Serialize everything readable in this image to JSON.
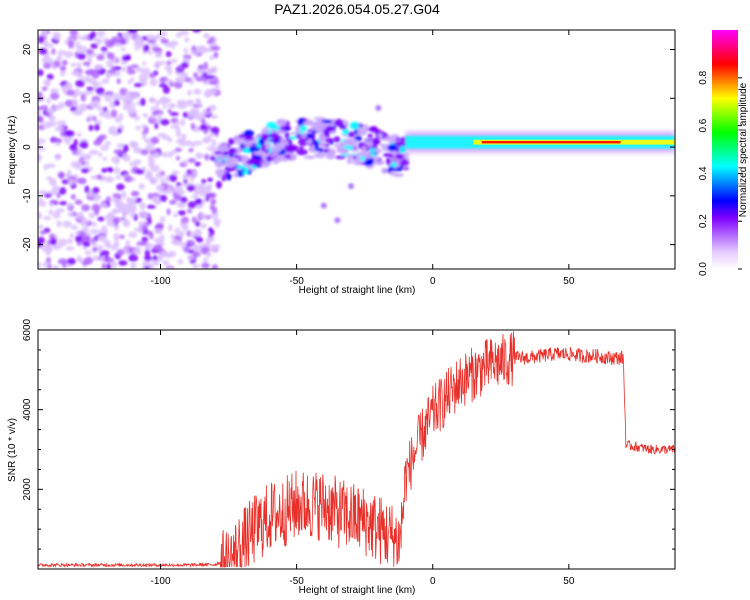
{
  "title": "PAZ1.2026.054.05.27.G04",
  "chart_data": [
    {
      "type": "heatmap",
      "xlabel": "Height of straight line (km)",
      "ylabel": "Frequency (Hz)",
      "xlim": [
        -145,
        89
      ],
      "ylim": [
        -25,
        24
      ],
      "xticks": [
        -100,
        -50,
        0,
        50
      ],
      "yticks": [
        -20,
        -10,
        0,
        10,
        20
      ],
      "colorbar": {
        "label": "Normalized spectral amplitude",
        "range": [
          0,
          1
        ],
        "ticks": [
          "0.0",
          "0.2",
          "0.4",
          "0.6",
          "0.8"
        ],
        "colors": [
          "#ffffff",
          "#e6ccff",
          "#b266ff",
          "#7f00ff",
          "#0000ff",
          "#0080ff",
          "#00ffff",
          "#00ff80",
          "#00ff00",
          "#80ff00",
          "#ffff00",
          "#ff8000",
          "#ff0000",
          "#ff0080",
          "#ff00ff"
        ]
      },
      "features": [
        {
          "region": "noise",
          "x_range": [
            -145,
            -79
          ],
          "freq_range": [
            -25,
            24
          ],
          "amplitude": 0.1
        },
        {
          "region": "diffuse-scatter",
          "x_range": [
            -79,
            -10
          ],
          "freq_center": [
            -3,
            3
          ],
          "amplitude": 0.25
        },
        {
          "region": "narrow-tone",
          "x_range": [
            -10,
            89
          ],
          "freq": 1,
          "amplitude": 0.8
        }
      ]
    },
    {
      "type": "line",
      "xlabel": "Height of straight line (km)",
      "ylabel": "SNR (10 * v/v)",
      "xlim": [
        -145,
        89
      ],
      "ylim": [
        0,
        6000
      ],
      "xticks": [
        -100,
        -50,
        0,
        50
      ],
      "yticks": [
        2000,
        4000,
        6000
      ],
      "series": [
        {
          "color": "#e8302a",
          "x": [
            -145,
            -120,
            -100,
            -90,
            -80,
            -75,
            -70,
            -65,
            -60,
            -55,
            -50,
            -45,
            -40,
            -35,
            -30,
            -25,
            -20,
            -15,
            -12,
            -10,
            -5,
            0,
            5,
            10,
            15,
            20,
            25,
            30,
            35,
            40,
            45,
            50,
            55,
            60,
            65,
            70,
            71,
            72,
            80,
            89
          ],
          "values": [
            100,
            100,
            100,
            100,
            110,
            250,
            700,
            1100,
            1400,
            1500,
            1700,
            1700,
            1700,
            1500,
            1400,
            1300,
            1100,
            900,
            800,
            2300,
            3200,
            3900,
            4300,
            4700,
            4900,
            5100,
            5200,
            5300,
            5300,
            5350,
            5400,
            5400,
            5350,
            5350,
            5300,
            5300,
            3100,
            3100,
            3000,
            3000
          ]
        }
      ]
    }
  ]
}
